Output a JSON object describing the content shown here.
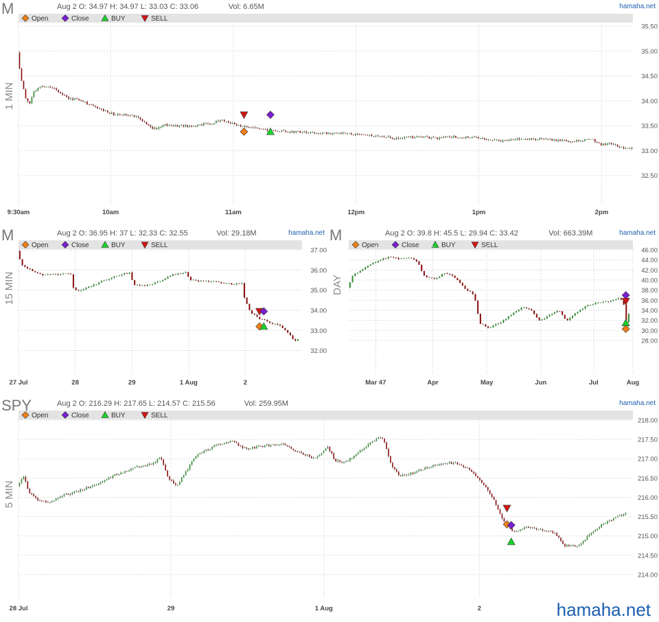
{
  "brand": "hamaha.net",
  "legend_items": [
    {
      "label": "Open",
      "color": "#f07f17",
      "shape": "diamond"
    },
    {
      "label": "Close",
      "color": "#7a1fd0",
      "shape": "diamond"
    },
    {
      "label": "BUY",
      "color": "#19d22a",
      "shape": "triangle-up"
    },
    {
      "label": "SELL",
      "color": "#d11515",
      "shape": "triangle-down"
    }
  ],
  "colors": {
    "up": "#2f8f2f",
    "down": "#8b0f0f",
    "wick": "#333333",
    "grid": "#dddddd",
    "legend_bg": "#e3e3e3",
    "text": "#555555",
    "brand": "#1d5fb0"
  },
  "chart_data": [
    {
      "id": "m-1min",
      "type": "candlestick",
      "symbol": "M",
      "timeframe": "1 MIN",
      "info": "Aug 2 O: 34.97 H: 34.97 L: 33.03 C: 33.06",
      "volume": "Vol: 6.65M",
      "brand": "hamaha.net",
      "xlabels": [
        "9:30am",
        "10am",
        "11am",
        "12pm",
        "1pm",
        "2pm"
      ],
      "xlabel_pos": [
        0.0,
        0.222,
        0.518,
        0.814,
        1.11,
        1.406
      ],
      "ylim": [
        32.0,
        35.5
      ],
      "yticks": [
        "32.50",
        "33.00",
        "33.50",
        "34.00",
        "34.50",
        "35.00",
        "35.50"
      ],
      "ytick_values": [
        32.5,
        33.0,
        33.5,
        34.0,
        34.5,
        35.0,
        35.5
      ],
      "n": 300,
      "path": [
        [
          0,
          34.97
        ],
        [
          3,
          34.5
        ],
        [
          8,
          34.05
        ],
        [
          12,
          33.95
        ],
        [
          16,
          34.2
        ],
        [
          22,
          34.28
        ],
        [
          30,
          34.3
        ],
        [
          38,
          34.22
        ],
        [
          50,
          34.05
        ],
        [
          62,
          34.02
        ],
        [
          72,
          33.9
        ],
        [
          85,
          33.8
        ],
        [
          95,
          33.72
        ],
        [
          110,
          33.72
        ],
        [
          118,
          33.68
        ],
        [
          125,
          33.55
        ],
        [
          132,
          33.45
        ],
        [
          138,
          33.45
        ],
        [
          145,
          33.52
        ],
        [
          150,
          33.5
        ],
        [
          170,
          33.5
        ],
        [
          190,
          33.55
        ],
        [
          200,
          33.62
        ],
        [
          215,
          33.5
        ],
        [
          230,
          33.45
        ],
        [
          250,
          33.4
        ],
        [
          270,
          33.38
        ],
        [
          290,
          33.35
        ],
        [
          310,
          33.35
        ],
        [
          330,
          33.33
        ],
        [
          350,
          33.3
        ],
        [
          370,
          33.25
        ],
        [
          390,
          33.28
        ],
        [
          410,
          33.25
        ],
        [
          430,
          33.28
        ],
        [
          450,
          33.25
        ],
        [
          470,
          33.2
        ],
        [
          490,
          33.23
        ],
        [
          520,
          33.23
        ],
        [
          540,
          33.18
        ],
        [
          560,
          33.23
        ],
        [
          570,
          33.12
        ],
        [
          580,
          33.15
        ],
        [
          592,
          33.03
        ],
        [
          600,
          33.06
        ]
      ],
      "path_len": 600,
      "markers": [
        {
          "label": "SELL",
          "t": 0.367,
          "price": 33.72
        },
        {
          "label": "Open",
          "t": 0.367,
          "price": 33.38
        },
        {
          "label": "Close",
          "t": 0.41,
          "price": 33.72
        },
        {
          "label": "BUY",
          "t": 0.41,
          "price": 33.38
        }
      ]
    },
    {
      "id": "m-15min",
      "type": "candlestick",
      "symbol": "M",
      "timeframe": "15 MIN",
      "info": "Aug 2 O: 36.95 H: 37 L: 32.33 C: 32.55",
      "volume": "Vol: 29.18M",
      "brand": "hamaha.net",
      "xlabels": [
        "27 Jul",
        "28",
        "29",
        "1 Aug",
        "2"
      ],
      "xlabel_pos": [
        0.0,
        0.2,
        0.4,
        0.6,
        0.8
      ],
      "ylim": [
        31.0,
        37.0
      ],
      "yticks": [
        "32.00",
        "33.00",
        "34.00",
        "35.00",
        "36.00",
        "37.00"
      ],
      "ytick_values": [
        32.0,
        33.0,
        34.0,
        35.0,
        36.0,
        37.0
      ],
      "n": 110,
      "path": [
        [
          0,
          36.95
        ],
        [
          3,
          36.3
        ],
        [
          8,
          36.05
        ],
        [
          15,
          35.8
        ],
        [
          20,
          35.75
        ],
        [
          30,
          35.8
        ],
        [
          38,
          35.85
        ],
        [
          40,
          35.1
        ],
        [
          45,
          34.95
        ],
        [
          52,
          35.2
        ],
        [
          62,
          35.5
        ],
        [
          72,
          35.75
        ],
        [
          80,
          35.85
        ],
        [
          83,
          35.3
        ],
        [
          88,
          35.2
        ],
        [
          100,
          35.4
        ],
        [
          112,
          35.8
        ],
        [
          120,
          35.9
        ],
        [
          123,
          35.5
        ],
        [
          132,
          35.45
        ],
        [
          142,
          35.4
        ],
        [
          152,
          35.3
        ],
        [
          160,
          35.35
        ],
        [
          162,
          34.6
        ],
        [
          166,
          33.9
        ],
        [
          172,
          33.6
        ],
        [
          178,
          33.45
        ],
        [
          188,
          33.2
        ],
        [
          194,
          32.8
        ],
        [
          198,
          32.45
        ],
        [
          200,
          32.55
        ]
      ],
      "path_len": 200,
      "markers": [
        {
          "label": "SELL",
          "t": 0.85,
          "price": 33.95
        },
        {
          "label": "Close",
          "t": 0.865,
          "price": 33.95
        },
        {
          "label": "Open",
          "t": 0.85,
          "price": 33.2
        },
        {
          "label": "BUY",
          "t": 0.865,
          "price": 33.2
        }
      ]
    },
    {
      "id": "m-day",
      "type": "candlestick",
      "symbol": "M",
      "timeframe": "DAY",
      "info": "Aug 2 O: 39.8 H: 45.5 L: 29.94 C: 33.42",
      "volume": "Vol: 663.39M",
      "brand": "hamaha.net",
      "xlabels": [
        "Mar 47",
        "Apr",
        "May",
        "Jun",
        "Jul",
        "Aug"
      ],
      "xlabel_pos": [
        0.095,
        0.296,
        0.486,
        0.676,
        0.862,
        1.0
      ],
      "ylim": [
        22.0,
        46.0
      ],
      "yticks": [
        "28.00",
        "30.00",
        "32.00",
        "34.00",
        "36.00",
        "38.00",
        "40.00",
        "42.00",
        "44.00",
        "46.00"
      ],
      "ytick_values": [
        28,
        30,
        32,
        34,
        36,
        38,
        40,
        42,
        44,
        46
      ],
      "n": 110,
      "path": [
        [
          0,
          38.5
        ],
        [
          4,
          41.0
        ],
        [
          10,
          42.0
        ],
        [
          16,
          43.0
        ],
        [
          22,
          44.0
        ],
        [
          30,
          44.6
        ],
        [
          38,
          44.2
        ],
        [
          44,
          44.6
        ],
        [
          50,
          43.5
        ],
        [
          55,
          40.5
        ],
        [
          62,
          40.2
        ],
        [
          70,
          41.5
        ],
        [
          76,
          40.5
        ],
        [
          85,
          38.0
        ],
        [
          90,
          37.2
        ],
        [
          94,
          31.5
        ],
        [
          100,
          30.5
        ],
        [
          108,
          31.5
        ],
        [
          116,
          33.0
        ],
        [
          124,
          34.5
        ],
        [
          130,
          34.3
        ],
        [
          136,
          32.0
        ],
        [
          144,
          33.0
        ],
        [
          150,
          34.0
        ],
        [
          156,
          32.0
        ],
        [
          162,
          33.5
        ],
        [
          170,
          35.0
        ],
        [
          178,
          35.5
        ],
        [
          186,
          35.8
        ],
        [
          192,
          36.4
        ],
        [
          196,
          35.9
        ],
        [
          198,
          31.5
        ],
        [
          200,
          33.42
        ]
      ],
      "path_len": 200,
      "markers": [
        {
          "label": "Close",
          "t": 0.975,
          "price": 37.0
        },
        {
          "label": "SELL",
          "t": 0.975,
          "price": 35.8
        },
        {
          "label": "BUY",
          "t": 0.975,
          "price": 31.5
        },
        {
          "label": "Open",
          "t": 0.975,
          "price": 30.3
        }
      ]
    },
    {
      "id": "spy-5min",
      "type": "candlestick",
      "symbol": "SPY",
      "timeframe": "5 MIN",
      "info": "Aug 2 O: 216.29 H: 217.65 L: 214.57 C: 215.56",
      "volume": "Vol: 259.95M",
      "brand": "hamaha.net",
      "xlabels": [
        "28 Jul",
        "29",
        "1 Aug",
        "2"
      ],
      "xlabel_pos": [
        0.0,
        0.248,
        0.497,
        0.75
      ],
      "ylim": [
        213.5,
        218.0
      ],
      "yticks": [
        "214.00",
        "214.50",
        "215.00",
        "215.50",
        "216.00",
        "216.50",
        "217.00",
        "217.50",
        "218.00"
      ],
      "ytick_values": [
        214.0,
        214.5,
        215.0,
        215.5,
        216.0,
        216.5,
        217.0,
        217.5,
        218.0
      ],
      "n": 300,
      "path": [
        [
          0,
          216.3
        ],
        [
          3,
          216.55
        ],
        [
          6,
          216.1
        ],
        [
          10,
          215.95
        ],
        [
          16,
          215.85
        ],
        [
          22,
          216.05
        ],
        [
          30,
          216.15
        ],
        [
          40,
          216.35
        ],
        [
          50,
          216.6
        ],
        [
          60,
          216.78
        ],
        [
          68,
          216.88
        ],
        [
          72,
          217.05
        ],
        [
          76,
          216.5
        ],
        [
          80,
          216.3
        ],
        [
          84,
          216.6
        ],
        [
          90,
          217.1
        ],
        [
          100,
          217.35
        ],
        [
          108,
          217.45
        ],
        [
          115,
          217.25
        ],
        [
          125,
          217.35
        ],
        [
          135,
          217.38
        ],
        [
          140,
          217.2
        ],
        [
          150,
          217.0
        ],
        [
          156,
          217.3
        ],
        [
          160,
          216.95
        ],
        [
          165,
          216.9
        ],
        [
          172,
          217.2
        ],
        [
          180,
          217.5
        ],
        [
          184,
          217.55
        ],
        [
          188,
          216.85
        ],
        [
          192,
          216.55
        ],
        [
          200,
          216.65
        ],
        [
          210,
          216.85
        ],
        [
          220,
          216.9
        ],
        [
          228,
          216.7
        ],
        [
          235,
          216.3
        ],
        [
          240,
          215.9
        ],
        [
          245,
          215.35
        ],
        [
          250,
          215.1
        ],
        [
          256,
          215.25
        ],
        [
          264,
          215.15
        ],
        [
          270,
          215.1
        ],
        [
          275,
          214.75
        ],
        [
          282,
          214.75
        ],
        [
          288,
          215.05
        ],
        [
          294,
          215.3
        ],
        [
          302,
          215.5
        ],
        [
          306,
          215.6
        ]
      ],
      "path_len": 306,
      "markers": [
        {
          "label": "SELL",
          "t": 0.795,
          "price": 215.72
        },
        {
          "label": "Open",
          "t": 0.795,
          "price": 215.3
        },
        {
          "label": "Close",
          "t": 0.802,
          "price": 215.28
        },
        {
          "label": "BUY",
          "t": 0.802,
          "price": 214.85
        }
      ]
    }
  ]
}
